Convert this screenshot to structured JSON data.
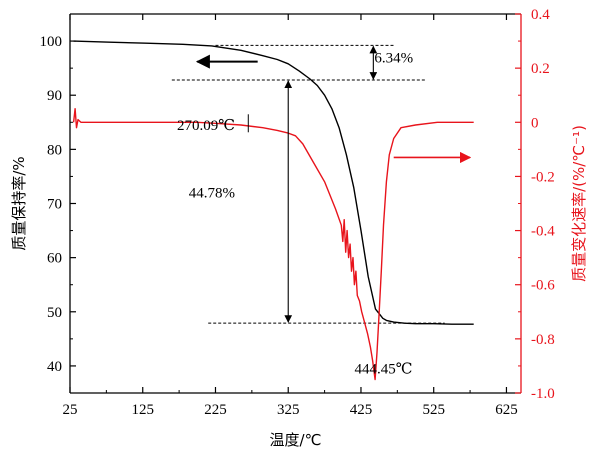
{
  "chart_data": {
    "type": "line",
    "xlabel": "温度/℃",
    "ylabel_left": "质量保持率/%",
    "ylabel_right": "质量变化速率/(%/℃⁻¹)",
    "xlim": [
      25,
      645
    ],
    "ylim_left": [
      35,
      105
    ],
    "ylim_right": [
      -1.0,
      0.4
    ],
    "x_ticks": [
      25,
      125,
      225,
      325,
      425,
      525,
      625
    ],
    "y_left_ticks": [
      40,
      50,
      60,
      70,
      80,
      90,
      100
    ],
    "y_right_ticks": [
      -1.0,
      -0.8,
      -0.6,
      -0.4,
      -0.2,
      0,
      0.2,
      0.4
    ],
    "y_right_tick_labels": [
      "-1.0",
      "-0.8",
      "-0.6",
      "-0.4",
      "-0.2",
      "0",
      "0.2",
      "0.4"
    ],
    "colors": {
      "mass": "#000000",
      "rate": "#e8141c",
      "axis_left": "#000000",
      "axis_right": "#e8141c"
    },
    "series": [
      {
        "axis": "left",
        "color": "#000000",
        "x": [
          30,
          80,
          130,
          180,
          220,
          260,
          290,
          310,
          325,
          340,
          355,
          365,
          375,
          385,
          395,
          405,
          415,
          425,
          435,
          445,
          455,
          460,
          470,
          485,
          500,
          525,
          550,
          580
        ],
        "y": [
          100.0,
          99.8,
          99.6,
          99.4,
          99.1,
          98.3,
          97.3,
          96.6,
          95.8,
          94.5,
          93.0,
          91.8,
          90.0,
          87.5,
          84.0,
          79.0,
          73.0,
          65.0,
          56.5,
          50.5,
          48.8,
          48.4,
          48.1,
          47.9,
          47.8,
          47.8,
          47.7,
          47.7
        ]
      },
      {
        "axis": "right",
        "color": "#e8141c",
        "x": [
          30,
          32,
          34,
          36,
          40,
          60,
          100,
          150,
          200,
          230,
          260,
          290,
          310,
          325,
          335,
          345,
          360,
          375,
          390,
          398,
          400,
          402,
          404,
          406,
          408,
          410,
          412,
          414,
          416,
          418,
          420,
          423,
          426,
          430,
          434,
          438,
          441,
          444.45,
          447,
          450,
          453,
          456,
          460,
          464,
          470,
          480,
          500,
          530,
          560,
          580
        ],
        "y": [
          0.0,
          0.05,
          -0.02,
          0.01,
          0.0,
          0.0,
          0.0,
          0.0,
          0.0,
          -0.005,
          -0.01,
          -0.02,
          -0.03,
          -0.04,
          -0.05,
          -0.08,
          -0.15,
          -0.22,
          -0.32,
          -0.38,
          -0.44,
          -0.36,
          -0.48,
          -0.4,
          -0.5,
          -0.45,
          -0.55,
          -0.5,
          -0.6,
          -0.55,
          -0.64,
          -0.66,
          -0.7,
          -0.74,
          -0.78,
          -0.83,
          -0.88,
          -0.95,
          -0.85,
          -0.7,
          -0.55,
          -0.38,
          -0.22,
          -0.12,
          -0.06,
          -0.02,
          -0.01,
          0.0,
          0.0,
          0.0
        ]
      }
    ],
    "annotations": [
      {
        "label": "6.34%",
        "x": 470,
        "y": 97
      },
      {
        "label": "44.78%",
        "x": 220,
        "y": 72
      },
      {
        "label": "270.09℃",
        "x": 212,
        "y": 84.5
      },
      {
        "label": "444.45℃",
        "x": 456,
        "y": 39.5
      }
    ],
    "guides": [
      {
        "x": [
          225,
          470
        ],
        "y": 99.2,
        "axis": "left",
        "style": "dashed"
      },
      {
        "x": [
          165,
          515
        ],
        "y": 92.8,
        "axis": "left",
        "style": "dashed"
      },
      {
        "x": [
          215,
          540
        ],
        "y": 47.9,
        "axis": "left",
        "style": "dashed"
      }
    ],
    "marker_270": {
      "x": 270.09,
      "y": -0.01
    },
    "grid": false
  }
}
